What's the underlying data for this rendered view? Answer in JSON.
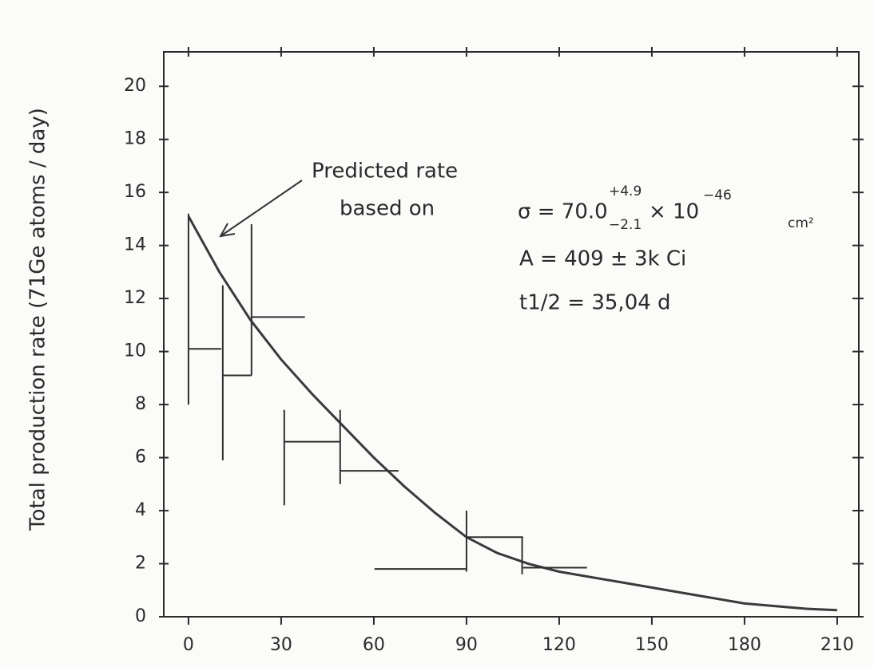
{
  "chart_data": {
    "type": "step-errorbar",
    "ylabel": "Total production rate (71Ge atoms / day)",
    "annotation": {
      "line1": "Predicted rate",
      "line2": "based on",
      "sigma_base": "σ = 70.0",
      "sigma_plus": "+4.9",
      "sigma_minus": "−2.1",
      "sigma_times": "× 10",
      "sigma_power": "−46",
      "sigma_unit": "cm²",
      "activity": "A = 409 ± 3k Ci",
      "halflife": "t1/2 = 35,04 d"
    },
    "xlim": [
      -8,
      217
    ],
    "ylim": [
      0,
      21.3
    ],
    "xticks": [
      0,
      30,
      60,
      90,
      120,
      150,
      180,
      210
    ],
    "yticks": [
      0,
      2,
      4,
      6,
      8,
      10,
      12,
      14,
      16,
      18,
      20
    ],
    "prediction": {
      "color": "#3a3a3a",
      "x": [
        0,
        10,
        20,
        30,
        40,
        50,
        60,
        70,
        80,
        90,
        100,
        110,
        120,
        140,
        160,
        180,
        200,
        210
      ],
      "values": [
        15.1,
        13.0,
        11.2,
        9.7,
        8.4,
        7.2,
        6.0,
        4.9,
        3.9,
        3.0,
        2.4,
        2.0,
        1.7,
        1.3,
        0.9,
        0.5,
        0.3,
        0.25
      ]
    },
    "runs": {
      "color": "#2f2f2f",
      "start": [
        0,
        11.1,
        20.4,
        31,
        49.1,
        60.2,
        90,
        108.3
      ],
      "end": [
        10.6,
        20.4,
        37.7,
        49.1,
        68,
        90,
        108.3,
        129
      ],
      "rate": [
        10.1,
        9.1,
        11.3,
        6.6,
        5.5,
        1.8,
        3.0,
        1.85
      ],
      "bar_x": [
        0,
        11.1,
        20.4,
        31,
        49.1,
        90,
        108,
        null
      ],
      "err_low": [
        8.0,
        5.9,
        9.1,
        4.2,
        5.0,
        1.7,
        1.6,
        null
      ],
      "err_high": [
        15.2,
        12.5,
        14.8,
        7.8,
        7.8,
        4.0,
        3.0,
        null
      ]
    }
  }
}
